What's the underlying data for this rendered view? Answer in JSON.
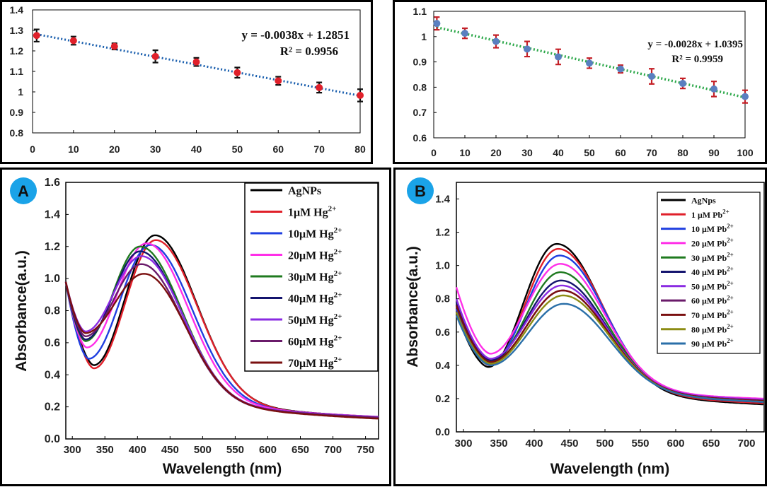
{
  "chart_data": [
    {
      "id": "c1",
      "type": "scatter",
      "title": "",
      "xlabel": "",
      "ylabel": "",
      "xlim": [
        0,
        80
      ],
      "ylim": [
        0.8,
        1.4
      ],
      "xticks": [
        "0",
        "10",
        "20",
        "30",
        "40",
        "50",
        "60",
        "70",
        "80"
      ],
      "yticks": [
        "0.8",
        "0.9",
        "1",
        "1.1",
        "1.2",
        "1.3",
        "1.4"
      ],
      "points": [
        {
          "x": 1,
          "y": 1.275,
          "err": 0.03
        },
        {
          "x": 10,
          "y": 1.25,
          "err": 0.02
        },
        {
          "x": 20,
          "y": 1.222,
          "err": 0.015
        },
        {
          "x": 30,
          "y": 1.173,
          "err": 0.03
        },
        {
          "x": 40,
          "y": 1.146,
          "err": 0.02
        },
        {
          "x": 50,
          "y": 1.094,
          "err": 0.025
        },
        {
          "x": 60,
          "y": 1.054,
          "err": 0.02
        },
        {
          "x": 70,
          "y": 1.021,
          "err": 0.025
        },
        {
          "x": 80,
          "y": 0.983,
          "err": 0.03
        }
      ],
      "fit": {
        "slope": -0.0038,
        "intercept": 1.2851
      },
      "equation": "y = -0.0038x + 1.2851",
      "r2": "R² = 0.9956",
      "marker_color": "#e0202a",
      "fit_color": "#1a5fae"
    },
    {
      "id": "c2",
      "type": "scatter",
      "title": "",
      "xlabel": "",
      "ylabel": "",
      "xlim": [
        0,
        100
      ],
      "ylim": [
        0.6,
        1.1
      ],
      "xticks": [
        "0",
        "10",
        "20",
        "30",
        "40",
        "50",
        "60",
        "70",
        "80",
        "90",
        "100"
      ],
      "yticks": [
        "0.6",
        "0.7",
        "0.8",
        "0.9",
        "1",
        "1.1"
      ],
      "points": [
        {
          "x": 1,
          "y": 1.052,
          "err": 0.025
        },
        {
          "x": 10,
          "y": 1.013,
          "err": 0.02
        },
        {
          "x": 20,
          "y": 0.981,
          "err": 0.025
        },
        {
          "x": 30,
          "y": 0.951,
          "err": 0.03
        },
        {
          "x": 40,
          "y": 0.92,
          "err": 0.03
        },
        {
          "x": 50,
          "y": 0.895,
          "err": 0.02
        },
        {
          "x": 60,
          "y": 0.872,
          "err": 0.015
        },
        {
          "x": 70,
          "y": 0.843,
          "err": 0.03
        },
        {
          "x": 80,
          "y": 0.815,
          "err": 0.02
        },
        {
          "x": 90,
          "y": 0.793,
          "err": 0.03
        },
        {
          "x": 100,
          "y": 0.763,
          "err": 0.025
        }
      ],
      "fit": {
        "slope": -0.0028,
        "intercept": 1.0395
      },
      "equation": "y = -0.0028x + 1.0395",
      "r2": "R² = 0.9959",
      "marker_color": "#5a7fc0",
      "error_color": "#c41f26",
      "fit_color": "#2ca84a"
    },
    {
      "id": "c3",
      "type": "line",
      "badge": "A",
      "xlabel": "Wavelength (nm)",
      "ylabel": "Absorbance(a.u.)",
      "xlim": [
        290,
        770
      ],
      "ylim": [
        0,
        1.6
      ],
      "xticks": [
        "300",
        "350",
        "400",
        "450",
        "500",
        "550",
        "600",
        "650",
        "700",
        "750"
      ],
      "yticks": [
        "0.0",
        "0.2",
        "0.4",
        "0.6",
        "0.8",
        "1.0",
        "1.2",
        "1.4",
        "1.6"
      ],
      "series": [
        {
          "name": "AgNPs",
          "label": "AgNPs",
          "sup": "",
          "color": "#000000",
          "start": 0.98,
          "min_x": 333,
          "min_y": 0.46,
          "peak_x": 427,
          "peak_y": 1.27,
          "end": 0.085
        },
        {
          "name": "1μM Hg2+",
          "label": "1μM Hg",
          "sup": "2+",
          "color": "#e0202a",
          "start": 0.98,
          "min_x": 333,
          "min_y": 0.44,
          "peak_x": 428,
          "peak_y": 1.24,
          "end": 0.08
        },
        {
          "name": "10μM Hg2+",
          "label": "10μM Hg",
          "sup": "2+",
          "color": "#1f3fe0",
          "start": 0.98,
          "min_x": 325,
          "min_y": 0.5,
          "peak_x": 420,
          "peak_y": 1.21,
          "end": 0.085
        },
        {
          "name": "20μM Hg2+",
          "label": "20μM Hg",
          "sup": "2+",
          "color": "#ff2fe8",
          "start": 0.98,
          "min_x": 322,
          "min_y": 0.57,
          "peak_x": 414,
          "peak_y": 1.22,
          "end": 0.09
        },
        {
          "name": "30μM Hg2+",
          "label": "30μM Hg",
          "sup": "2+",
          "color": "#1f7a1f",
          "start": 0.98,
          "min_x": 320,
          "min_y": 0.61,
          "peak_x": 404,
          "peak_y": 1.2,
          "end": 0.09
        },
        {
          "name": "40μM Hg2+",
          "label": "40μM Hg",
          "sup": "2+",
          "color": "#14146e",
          "start": 0.98,
          "min_x": 320,
          "min_y": 0.62,
          "peak_x": 404,
          "peak_y": 1.17,
          "end": 0.085
        },
        {
          "name": "50μM Hg2+",
          "label": "50μM Hg",
          "sup": "2+",
          "color": "#8a2be2",
          "start": 0.98,
          "min_x": 320,
          "min_y": 0.67,
          "peak_x": 406,
          "peak_y": 1.14,
          "end": 0.09
        },
        {
          "name": "60μM Hg2+",
          "label": "60μM Hg",
          "sup": "2+",
          "color": "#6a1b6a",
          "start": 0.98,
          "min_x": 320,
          "min_y": 0.64,
          "peak_x": 406,
          "peak_y": 1.09,
          "end": 0.085
        },
        {
          "name": "70μM Hg2+",
          "label": "70μM Hg",
          "sup": "2+",
          "color": "#7a0f0f",
          "start": 0.98,
          "min_x": 320,
          "min_y": 0.66,
          "peak_x": 410,
          "peak_y": 1.03,
          "end": 0.075
        }
      ]
    },
    {
      "id": "c4",
      "type": "line",
      "badge": "B",
      "xlabel": "Wavelength (nm)",
      "ylabel": "Absorbance(a.u.)",
      "xlim": [
        290,
        725
      ],
      "ylim": [
        0,
        1.5
      ],
      "xticks": [
        "300",
        "350",
        "400",
        "450",
        "500",
        "550",
        "600",
        "650",
        "700"
      ],
      "yticks": [
        "0.0",
        "0.2",
        "0.4",
        "0.6",
        "0.8",
        "1.0",
        "1.2",
        "1.4"
      ],
      "series": [
        {
          "name": "AgNps",
          "label": "AgNps",
          "sup": "",
          "color": "#000000",
          "start": 0.72,
          "min_x": 335,
          "min_y": 0.39,
          "peak_x": 432,
          "peak_y": 1.13,
          "end": 0.11
        },
        {
          "name": "1 μM Pb2+",
          "label": "1 μM Pb",
          "sup": "2+",
          "color": "#e0202a",
          "start": 0.74,
          "min_x": 337,
          "min_y": 0.4,
          "peak_x": 434,
          "peak_y": 1.1,
          "end": 0.12
        },
        {
          "name": "10 μM Pb2+",
          "label": "10 μM Pb",
          "sup": "2+",
          "color": "#1f3fe0",
          "start": 0.74,
          "min_x": 337,
          "min_y": 0.41,
          "peak_x": 436,
          "peak_y": 1.06,
          "end": 0.13
        },
        {
          "name": "20 μM Pb2+",
          "label": "20 μM Pb",
          "sup": "2+",
          "color": "#ff2fe8",
          "start": 0.87,
          "min_x": 338,
          "min_y": 0.47,
          "peak_x": 437,
          "peak_y": 1.01,
          "end": 0.16
        },
        {
          "name": "30 μM Pb2+",
          "label": "30 μM Pb",
          "sup": "2+",
          "color": "#1f7a1f",
          "start": 0.76,
          "min_x": 338,
          "min_y": 0.42,
          "peak_x": 437,
          "peak_y": 0.96,
          "end": 0.14
        },
        {
          "name": "40 μM Pb2+",
          "label": "40 μM Pb",
          "sup": "2+",
          "color": "#14146e",
          "start": 0.78,
          "min_x": 338,
          "min_y": 0.43,
          "peak_x": 438,
          "peak_y": 0.91,
          "end": 0.13
        },
        {
          "name": "50 μM Pb2+",
          "label": "50 μM Pb",
          "sup": "2+",
          "color": "#8a2be2",
          "start": 0.8,
          "min_x": 338,
          "min_y": 0.44,
          "peak_x": 439,
          "peak_y": 0.88,
          "end": 0.15
        },
        {
          "name": "60 μM Pb2+",
          "label": "60 μM Pb",
          "sup": "2+",
          "color": "#6a1b6a",
          "start": 0.76,
          "min_x": 338,
          "min_y": 0.42,
          "peak_x": 440,
          "peak_y": 0.85,
          "end": 0.14
        },
        {
          "name": "70 μM Pb2+",
          "label": "70 μM Pb",
          "sup": "2+",
          "color": "#7a0f0f",
          "start": 0.76,
          "min_x": 338,
          "min_y": 0.42,
          "peak_x": 440,
          "peak_y": 0.85,
          "end": 0.14
        },
        {
          "name": "80 μM Pb2+",
          "label": "80 μM Pb",
          "sup": "2+",
          "color": "#8c8c14",
          "start": 0.72,
          "min_x": 338,
          "min_y": 0.41,
          "peak_x": 441,
          "peak_y": 0.82,
          "end": 0.13
        },
        {
          "name": "90 μM Pb2+",
          "label": "90 μM Pb",
          "sup": "2+",
          "color": "#2a6fa8",
          "start": 0.7,
          "min_x": 338,
          "min_y": 0.4,
          "peak_x": 442,
          "peak_y": 0.77,
          "end": 0.13
        }
      ]
    }
  ]
}
